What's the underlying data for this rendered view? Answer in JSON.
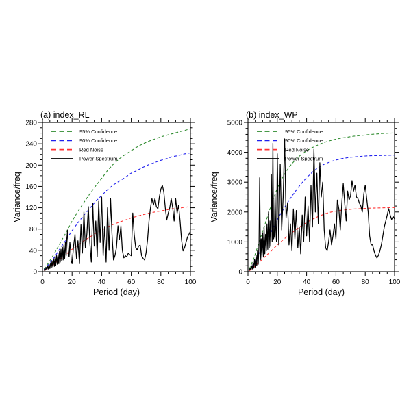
{
  "figure": {
    "background": "#ffffff"
  },
  "chart_data": [
    {
      "id": "a",
      "type": "line",
      "title": "(a) index_RL",
      "xlabel": "Period (day)",
      "ylabel": "Variance/freq",
      "xlim": [
        0,
        100
      ],
      "ylim": [
        0,
        280
      ],
      "x_major": 20,
      "x_minor": 5,
      "y_major": 40,
      "y_minor": 10,
      "x_tick_labels": [
        "0",
        "20",
        "40",
        "60",
        "80",
        "100"
      ],
      "y_tick_labels": [
        "0",
        "40",
        "80",
        "120",
        "160",
        "200",
        "240",
        "280"
      ],
      "grid": false,
      "legend_position": "top-left",
      "series": [
        {
          "name": "95% Confidence",
          "color": "#2e8b2e",
          "dashed": true,
          "x": [
            1,
            4,
            8,
            12,
            16,
            20,
            24,
            28,
            32,
            36,
            40,
            44,
            48,
            52,
            56,
            60,
            64,
            68,
            72,
            76,
            80,
            84,
            88,
            92,
            96,
            100
          ],
          "y": [
            5,
            16,
            34,
            54,
            74,
            95,
            113,
            130,
            146,
            161,
            175,
            190,
            202,
            212,
            220,
            227,
            234,
            240,
            245,
            249,
            253,
            256,
            259,
            262,
            265,
            268
          ]
        },
        {
          "name": "90% Confidence",
          "color": "#2020ee",
          "dashed": true,
          "x": [
            1,
            4,
            8,
            12,
            16,
            20,
            24,
            28,
            32,
            36,
            40,
            44,
            48,
            52,
            56,
            60,
            64,
            68,
            72,
            76,
            80,
            84,
            88,
            92,
            96,
            100
          ],
          "y": [
            4,
            13,
            27,
            44,
            60,
            77,
            92,
            106,
            119,
            132,
            143,
            154,
            163,
            170,
            177,
            185,
            190,
            196,
            201,
            205,
            209,
            212,
            216,
            218,
            221,
            223
          ]
        },
        {
          "name": "Red Noise",
          "color": "#ff3030",
          "dashed": true,
          "x": [
            1,
            4,
            8,
            12,
            16,
            20,
            24,
            28,
            32,
            36,
            40,
            44,
            48,
            52,
            56,
            60,
            64,
            68,
            72,
            76,
            80,
            84,
            88,
            92,
            96,
            100
          ],
          "y": [
            2,
            7,
            15,
            24,
            33,
            42,
            50,
            58,
            65,
            72,
            78,
            84,
            89,
            93,
            97,
            101,
            104,
            107,
            110,
            112,
            114,
            116,
            118,
            119,
            121,
            122
          ]
        },
        {
          "name": "Power Spectrum",
          "color": "#000000",
          "dashed": false,
          "x": [
            1,
            1.5,
            2,
            2.5,
            3,
            3.5,
            4,
            4.5,
            5,
            5.5,
            6,
            6.5,
            7,
            7.5,
            8,
            8.5,
            9,
            9.5,
            10,
            10.5,
            11,
            11.5,
            12,
            12.5,
            13,
            13.5,
            14,
            14.5,
            15,
            15.5,
            16,
            16.5,
            17,
            17.5,
            18,
            18.5,
            19,
            19.5,
            20,
            21,
            22,
            23,
            24,
            25,
            26,
            27,
            28,
            29,
            30,
            31,
            32,
            33,
            34,
            35,
            36,
            37,
            38,
            39,
            40,
            41,
            42,
            43,
            44,
            45,
            46,
            47,
            48,
            49,
            50,
            51,
            52,
            53,
            54,
            55,
            56,
            57,
            58,
            59,
            60,
            61,
            62,
            63,
            64,
            65,
            66,
            67,
            68,
            69,
            70,
            71,
            72,
            73,
            74,
            75,
            76,
            77,
            78,
            79,
            80,
            81,
            82,
            83,
            84,
            85,
            86,
            87,
            88,
            89,
            90,
            91,
            92,
            93,
            94,
            95,
            96,
            97,
            98,
            99,
            100
          ],
          "y": [
            2,
            5,
            3,
            8,
            4,
            10,
            5,
            14,
            6,
            16,
            8,
            20,
            9,
            24,
            10,
            28,
            12,
            30,
            14,
            34,
            15,
            38,
            18,
            42,
            20,
            46,
            22,
            50,
            25,
            55,
            30,
            62,
            78,
            35,
            28,
            55,
            42,
            20,
            15,
            48,
            70,
            25,
            58,
            15,
            88,
            35,
            112,
            45,
            70,
            122,
            55,
            18,
            128,
            48,
            95,
            28,
            132,
            55,
            140,
            30,
            85,
            18,
            120,
            40,
            137,
            70,
            22,
            30,
            45,
            86,
            60,
            86,
            40,
            26,
            30,
            28,
            35,
            32,
            30,
            110,
            70,
            45,
            41,
            48,
            50,
            30,
            25,
            22,
            35,
            60,
            95,
            120,
            137,
            125,
            137,
            122,
            118,
            140,
            155,
            162,
            150,
            120,
            97,
            110,
            120,
            137,
            120,
            95,
            137,
            110,
            125,
            95,
            60,
            39,
            45,
            55,
            65,
            70,
            76
          ]
        }
      ]
    },
    {
      "id": "b",
      "type": "line",
      "title": "(b) index_WP",
      "xlabel": "Period (day)",
      "ylabel": "Variance/freq",
      "xlim": [
        0,
        100
      ],
      "ylim": [
        0,
        5000
      ],
      "x_major": 20,
      "x_minor": 5,
      "y_major": 1000,
      "y_minor": 200,
      "x_tick_labels": [
        "0",
        "20",
        "40",
        "60",
        "80",
        "100"
      ],
      "y_tick_labels": [
        "0",
        "1000",
        "2000",
        "3000",
        "4000",
        "5000"
      ],
      "grid": false,
      "legend_position": "top-left",
      "series": [
        {
          "name": "95% Confidence",
          "color": "#2e8b2e",
          "dashed": true,
          "x": [
            1,
            4,
            8,
            12,
            16,
            20,
            24,
            28,
            32,
            36,
            40,
            44,
            48,
            52,
            56,
            60,
            64,
            68,
            72,
            76,
            80,
            84,
            88,
            92,
            96,
            100
          ],
          "y": [
            90,
            450,
            1050,
            1650,
            2250,
            2800,
            3200,
            3500,
            3730,
            3910,
            4050,
            4160,
            4250,
            4330,
            4390,
            4440,
            4480,
            4510,
            4540,
            4560,
            4580,
            4600,
            4615,
            4630,
            4640,
            4650
          ]
        },
        {
          "name": "90% Confidence",
          "color": "#2020ee",
          "dashed": true,
          "x": [
            1,
            4,
            8,
            12,
            16,
            20,
            24,
            28,
            32,
            36,
            40,
            44,
            48,
            52,
            56,
            60,
            64,
            68,
            72,
            76,
            80,
            84,
            88,
            92,
            96,
            100
          ],
          "y": [
            60,
            270,
            640,
            1010,
            1360,
            1750,
            2080,
            2390,
            2670,
            2930,
            3150,
            3340,
            3490,
            3600,
            3680,
            3740,
            3790,
            3820,
            3845,
            3860,
            3875,
            3885,
            3890,
            3895,
            3900,
            3905
          ]
        },
        {
          "name": "Red Noise",
          "color": "#ff3030",
          "dashed": true,
          "x": [
            1,
            4,
            8,
            12,
            16,
            20,
            24,
            28,
            32,
            36,
            40,
            44,
            48,
            52,
            56,
            60,
            64,
            68,
            72,
            76,
            80,
            84,
            88,
            92,
            96,
            100
          ],
          "y": [
            30,
            140,
            330,
            520,
            700,
            900,
            1070,
            1230,
            1380,
            1520,
            1650,
            1760,
            1850,
            1930,
            1990,
            2030,
            2060,
            2080,
            2100,
            2110,
            2120,
            2130,
            2135,
            2140,
            2145,
            2150
          ]
        },
        {
          "name": "Power Spectrum",
          "color": "#000000",
          "dashed": false,
          "x": [
            1,
            1.5,
            2,
            2.5,
            3,
            3.5,
            4,
            4.5,
            5,
            5.5,
            6,
            6.5,
            7,
            7.5,
            8,
            8.5,
            9,
            9.5,
            10,
            10.5,
            11,
            11.5,
            12,
            12.5,
            13,
            13.5,
            14,
            14.5,
            15,
            15.5,
            16,
            16.5,
            17,
            17.5,
            18,
            18.5,
            19,
            19.5,
            20,
            21,
            22,
            23,
            24,
            25,
            26,
            27,
            28,
            29,
            30,
            31,
            32,
            33,
            34,
            35,
            36,
            37,
            38,
            39,
            40,
            41,
            42,
            43,
            44,
            45,
            46,
            47,
            48,
            49,
            50,
            51,
            52,
            53,
            54,
            55,
            56,
            57,
            58,
            59,
            60,
            61,
            62,
            63,
            64,
            65,
            66,
            67,
            68,
            69,
            70,
            71,
            72,
            73,
            74,
            75,
            76,
            77,
            78,
            79,
            80,
            81,
            82,
            83,
            84,
            85,
            86,
            87,
            88,
            89,
            90,
            91,
            92,
            93,
            94,
            95,
            96,
            97,
            98,
            99,
            100
          ],
          "y": [
            40,
            120,
            60,
            200,
            90,
            300,
            120,
            420,
            150,
            560,
            200,
            700,
            250,
            900,
            3150,
            400,
            1100,
            450,
            1300,
            500,
            1500,
            600,
            1250,
            700,
            1600,
            750,
            2000,
            800,
            1700,
            850,
            3250,
            1000,
            4300,
            1100,
            1200,
            2600,
            1400,
            1000,
            3950,
            900,
            3600,
            1400,
            2500,
            4450,
            1800,
            2300,
            900,
            1600,
            700,
            2100,
            1100,
            2050,
            800,
            1500,
            600,
            1900,
            1000,
            2500,
            1200,
            2200,
            1000,
            2900,
            1500,
            4100,
            2000,
            3300,
            1600,
            3650,
            2500,
            3000,
            1400,
            800,
            700,
            1000,
            1400,
            900,
            1200,
            1600,
            1100,
            2400,
            2100,
            1400,
            2300,
            2950,
            2300,
            1700,
            2700,
            2400,
            2550,
            3050,
            2700,
            2900,
            2500,
            2450,
            2300,
            2200,
            2000,
            2600,
            2900,
            2450,
            2000,
            1200,
            900,
            900,
            700,
            550,
            460,
            550,
            700,
            900,
            1200,
            1500,
            1700,
            1900,
            2110,
            1900,
            1750,
            1850,
            1766
          ]
        }
      ]
    }
  ]
}
